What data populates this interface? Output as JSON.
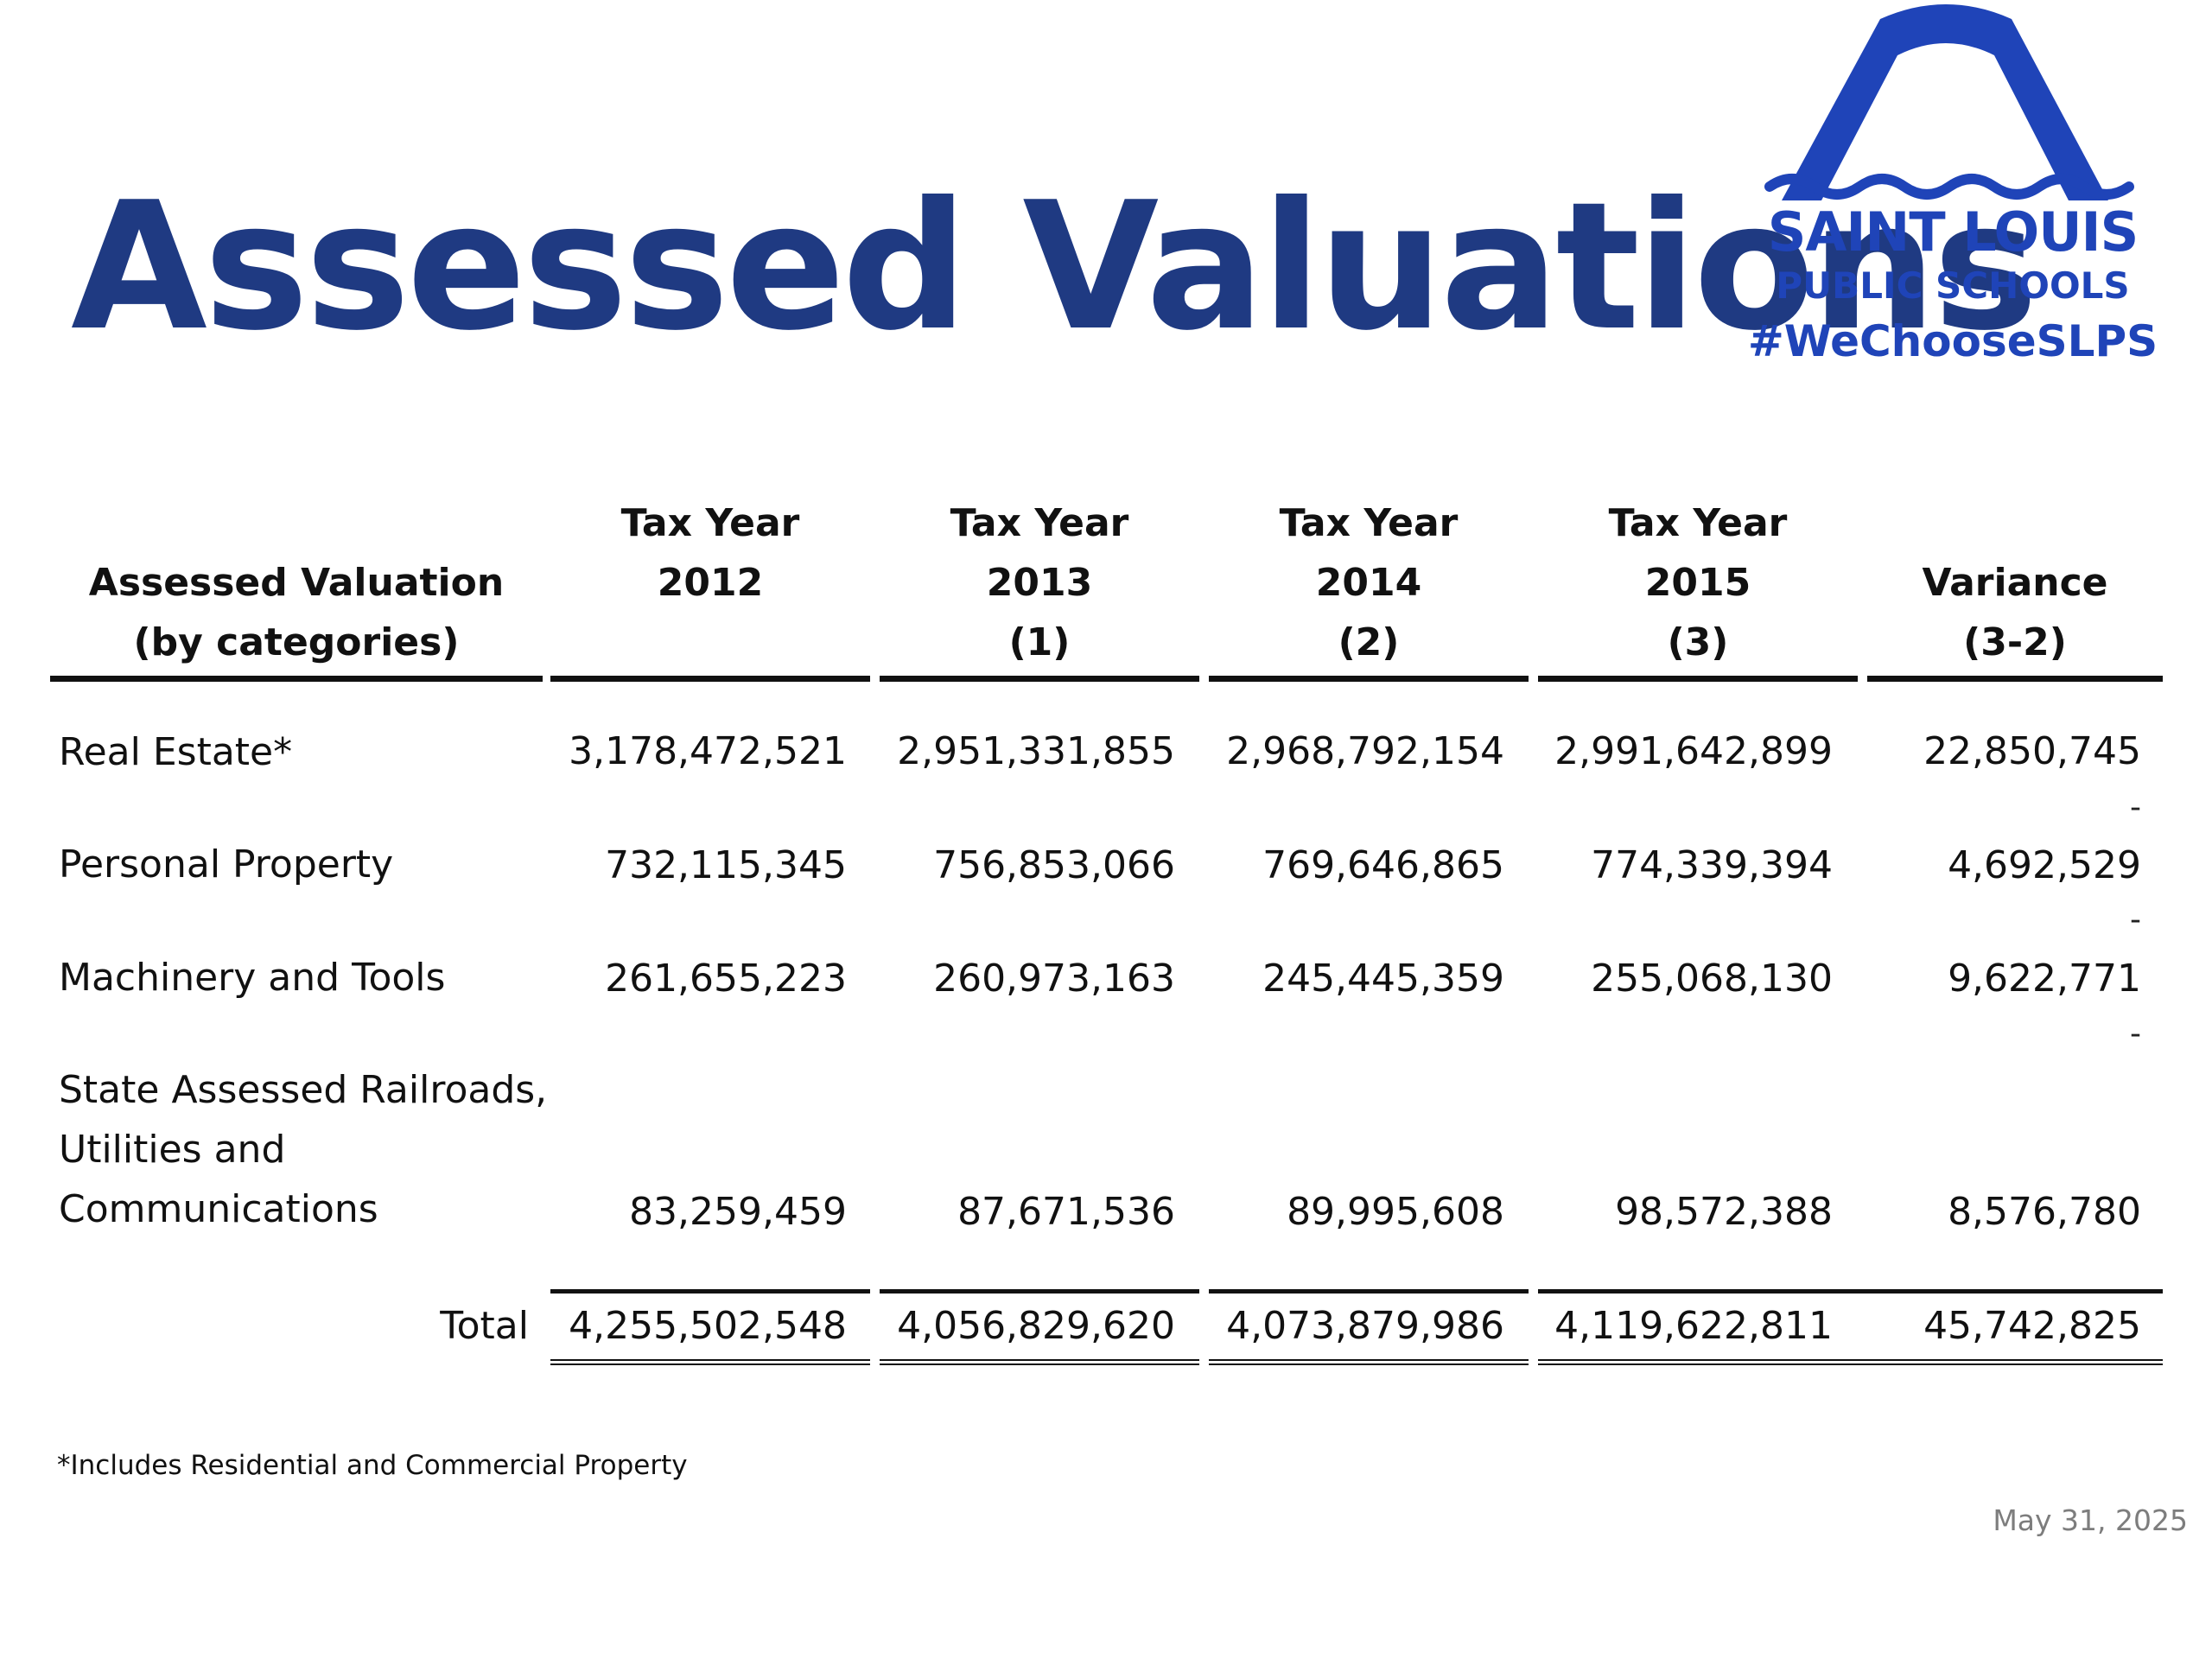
{
  "title": "Assessed Valuations",
  "logo": {
    "line1": "SAINT LOUIS",
    "line2": "PUBLIC SCHOOLS",
    "line3": "#WeChooseSLPS",
    "color": "#1f44b8"
  },
  "table": {
    "headers": [
      [
        "Assessed Valuation",
        "(by categories)"
      ],
      [
        "Tax Year",
        "2012",
        ""
      ],
      [
        "Tax Year",
        "2013",
        "(1)"
      ],
      [
        "Tax Year",
        "2014",
        "(2)"
      ],
      [
        "Tax Year",
        "2015",
        "(3)"
      ],
      [
        "Variance",
        "(3-2)"
      ]
    ],
    "rows": [
      {
        "label_lines": [
          "Real Estate*"
        ],
        "values": [
          "3,178,472,521",
          "2,951,331,855",
          "2,968,792,154",
          "2,991,642,899",
          "22,850,745"
        ],
        "variance_dash": "-"
      },
      {
        "label_lines": [
          "Personal Property"
        ],
        "values": [
          "732,115,345",
          "756,853,066",
          "769,646,865",
          "774,339,394",
          "4,692,529"
        ],
        "variance_dash": "-"
      },
      {
        "label_lines": [
          "Machinery and Tools"
        ],
        "values": [
          "261,655,223",
          "260,973,163",
          "245,445,359",
          "255,068,130",
          "9,622,771"
        ],
        "variance_dash": "-"
      },
      {
        "label_lines": [
          "State Assessed Railroads,",
          "Utilities and",
          "Communications"
        ],
        "values": [
          "83,259,459",
          "87,671,536",
          "89,995,608",
          "98,572,388",
          "8,576,780"
        ]
      }
    ],
    "total": {
      "label": "Total",
      "values": [
        "4,255,502,548",
        "4,056,829,620",
        "4,073,879,986",
        "4,119,622,811",
        "45,742,825"
      ]
    }
  },
  "footnote": "*Includes Residential and Commercial Property",
  "date": "May 31, 2025",
  "colors": {
    "title": "#1f3a82",
    "text": "#111111",
    "date": "#7d7d7d"
  }
}
